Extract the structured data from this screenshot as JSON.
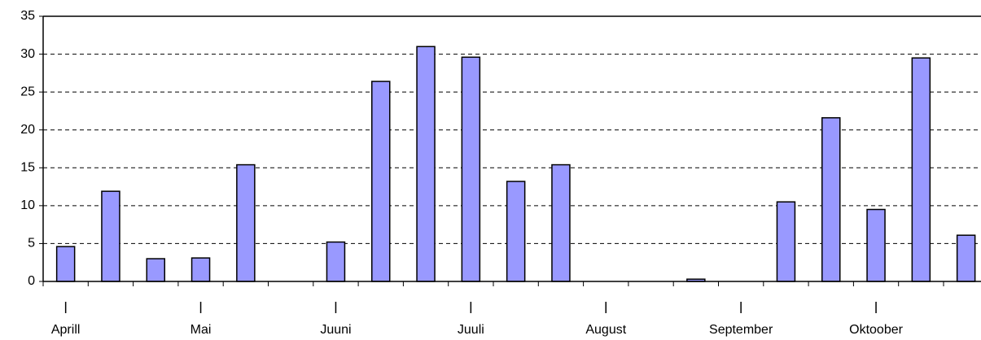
{
  "chart_data": {
    "type": "bar",
    "categories": [
      "Aprill",
      null,
      null,
      "Mai",
      null,
      null,
      "Juuni",
      null,
      null,
      "Juuli",
      null,
      null,
      "August",
      null,
      null,
      "September",
      null,
      null,
      "Oktoober",
      null,
      null
    ],
    "values": [
      4.6,
      11.9,
      3.0,
      3.1,
      15.4,
      0,
      5.2,
      26.4,
      31.0,
      29.6,
      13.2,
      15.4,
      0,
      0,
      0.3,
      0,
      10.5,
      21.6,
      9.5,
      29.5,
      6.1
    ],
    "color": "#9999ff",
    "ylim": [
      0,
      35
    ],
    "yticks": [
      0,
      5,
      10,
      15,
      20,
      25,
      30,
      35
    ],
    "grid": true
  }
}
